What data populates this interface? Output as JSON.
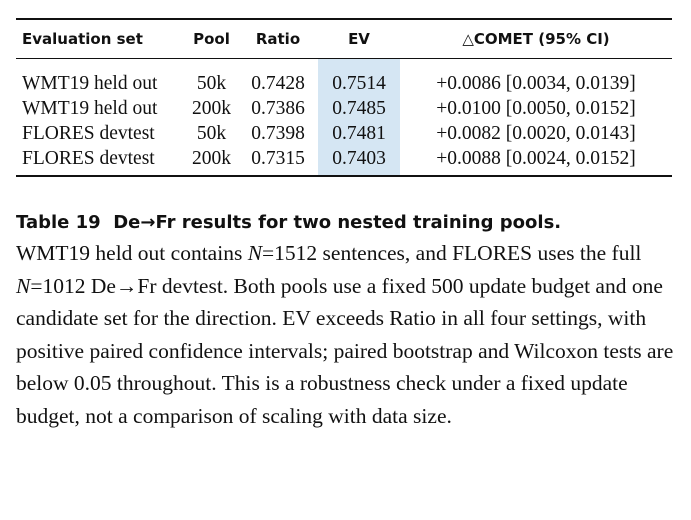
{
  "table": {
    "header": [
      "Evaluation set",
      "Pool",
      "Ratio",
      "EV",
      "△COMET (95% CI)"
    ],
    "rows": [
      [
        "WMT19 held out",
        "50k",
        "0.7428",
        "0.7514",
        "+0.0086 [0.0034, 0.0139]"
      ],
      [
        "WMT19 held out",
        "200k",
        "0.7386",
        "0.7485",
        "+0.0100 [0.0050, 0.0152]"
      ],
      [
        "FLORES devtest",
        "50k",
        "0.7398",
        "0.7481",
        "+0.0082 [0.0020, 0.0143]"
      ],
      [
        "FLORES devtest",
        "200k",
        "0.7315",
        "0.7403",
        "+0.0088 [0.0024, 0.0152]"
      ]
    ]
  },
  "caption": {
    "label": "Table 19",
    "title": "De→Fr results for two nested training pools.",
    "text": [
      "WMT19 held out contains ",
      "N",
      "=1512 sentences, and FLORES uses the full ",
      "N",
      "=1012 De→Fr devtest. Both pools use a fixed 500 update budget and one candidate set for the direction. EV exceeds Ratio in all four settings, with positive paired confidence intervals; paired bootstrap and Wilcoxon tests are below 0.05 throughout. This is a robustness check under a fixed update budget, not a comparison of scaling with data size."
    ]
  }
}
